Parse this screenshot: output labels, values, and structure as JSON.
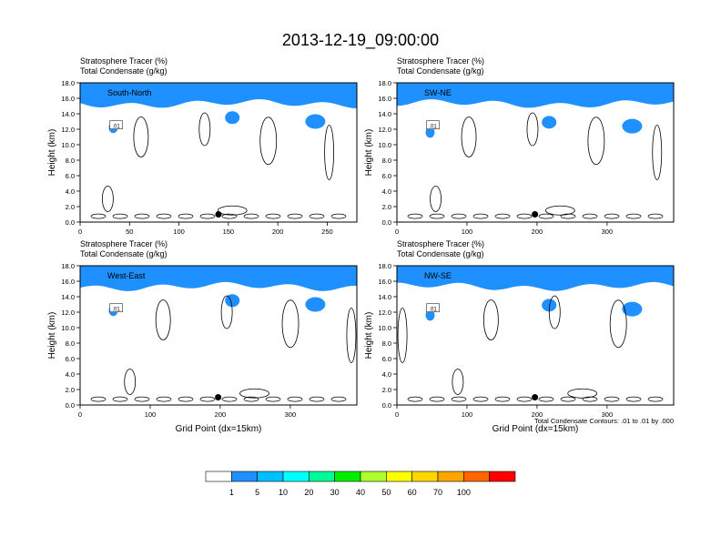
{
  "figure_title": "2013-12-19_09:00:00",
  "footnote": "Total Condensate Contours: .01 to .01 by .000",
  "colorbar": {
    "labels": [
      "1",
      "5",
      "10",
      "20",
      "30",
      "40",
      "50",
      "60",
      "70",
      "100"
    ],
    "colors": [
      "#ffffff",
      "#1e90ff",
      "#00bfff",
      "#00ffff",
      "#00fa9a",
      "#00ee00",
      "#adff2f",
      "#ffff00",
      "#ffd700",
      "#ffa500",
      "#ff6600",
      "#ff0000"
    ]
  },
  "chart_data": [
    {
      "type": "contour",
      "title_line1": "Stratosphere Tracer   (%)",
      "title_line2": "Total Condensate   (g/kg)",
      "cross_section": "South-North",
      "ylabel": "Height (km)",
      "xlabel": "",
      "x_ticks": [
        0,
        50,
        100,
        150,
        200,
        250
      ],
      "x_range": [
        0,
        280
      ],
      "y_ticks": [
        "0.0",
        "2.0",
        "4.0",
        "6.0",
        "8.0",
        "10.0",
        "12.0",
        "14.0",
        "16.0",
        "18.0"
      ],
      "y_range": [
        0,
        18
      ],
      "contour_label": ".01",
      "marker_x": 140
    },
    {
      "type": "contour",
      "title_line1": "Stratosphere Tracer   (%)",
      "title_line2": "Total Condensate   (g/kg)",
      "cross_section": "SW-NE",
      "ylabel": "Height (km)",
      "xlabel": "",
      "x_ticks": [
        0,
        100,
        200,
        300
      ],
      "x_range": [
        0,
        395
      ],
      "y_ticks": [
        "0.0",
        "2.0",
        "4.0",
        "6.0",
        "8.0",
        "10.0",
        "12.0",
        "14.0",
        "16.0",
        "18.0"
      ],
      "y_range": [
        0,
        18
      ],
      "contour_label": ".01",
      "marker_x": 197
    },
    {
      "type": "contour",
      "title_line1": "Stratosphere Tracer   (%)",
      "title_line2": "Total Condensate   (g/kg)",
      "cross_section": "West-East",
      "ylabel": "Height (km)",
      "xlabel": "Grid Point (dx=15km)",
      "x_ticks": [
        0,
        100,
        200,
        300
      ],
      "x_range": [
        0,
        395
      ],
      "y_ticks": [
        "0.0",
        "2.0",
        "4.0",
        "6.0",
        "8.0",
        "10.0",
        "12.0",
        "14.0",
        "16.0",
        "18.0"
      ],
      "y_range": [
        0,
        18
      ],
      "contour_label": ".01",
      "marker_x": 197
    },
    {
      "type": "contour",
      "title_line1": "Stratosphere Tracer   (%)",
      "title_line2": "Total Condensate   (g/kg)",
      "cross_section": "NW-SE",
      "ylabel": "Height (km)",
      "xlabel": "Grid Point (dx=15km)",
      "x_ticks": [
        0,
        100,
        200,
        300
      ],
      "x_range": [
        0,
        395
      ],
      "y_ticks": [
        "0.0",
        "2.0",
        "4.0",
        "6.0",
        "8.0",
        "10.0",
        "12.0",
        "14.0",
        "16.0",
        "18.0"
      ],
      "y_range": [
        0,
        18
      ],
      "contour_label": ".01",
      "marker_x": 197
    }
  ]
}
